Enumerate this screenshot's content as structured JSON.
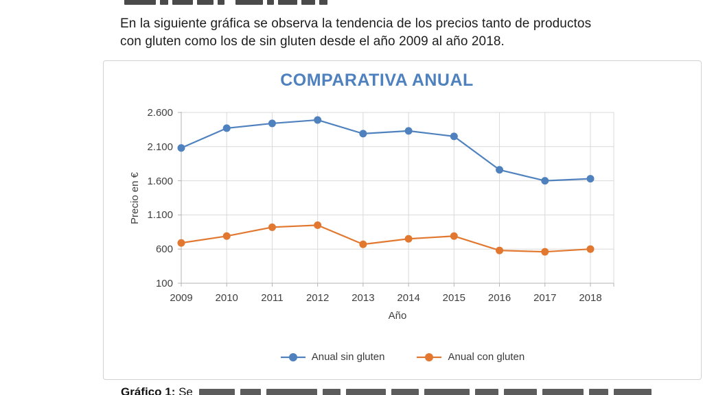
{
  "intro": {
    "lines": [
      "En la siguiente gráfica se observa la tendencia de los precios tanto de productos",
      "con gluten como los de sin gluten desde el año 2009 al año 2018."
    ]
  },
  "chart": {
    "title": "COMPARATIVA ANUAL",
    "x_axis_title": "Año",
    "y_axis_title": "Precio en €"
  },
  "caption": {
    "label": "Gráfico 1:",
    "visible_text": "Se"
  },
  "colors": {
    "title_blue": "#4e81bd",
    "series_sin_gluten": "#4e81bd",
    "series_con_gluten": "#e2782f",
    "gridline": "#d9d9d9",
    "axis": "#b3b3b3"
  },
  "chart_data": {
    "type": "line",
    "title": "COMPARATIVA ANUAL",
    "xlabel": "Año",
    "ylabel": "Precio en €",
    "categories": [
      "2009",
      "2010",
      "2011",
      "2012",
      "2013",
      "2014",
      "2015",
      "2016",
      "2017",
      "2018"
    ],
    "series": [
      {
        "name": "Anual sin gluten",
        "color": "#4e81bd",
        "values": [
          2080,
          2370,
          2440,
          2490,
          2290,
          2330,
          2250,
          1760,
          1600,
          1630
        ]
      },
      {
        "name": "Anual con gluten",
        "color": "#e2782f",
        "values": [
          690,
          790,
          920,
          950,
          670,
          750,
          790,
          580,
          560,
          600
        ]
      }
    ],
    "ylim": [
      100,
      2600
    ],
    "y_ticks": [
      100,
      600,
      1100,
      1600,
      2100,
      2600
    ],
    "y_tick_labels": [
      "100",
      "600",
      "1.100",
      "1.600",
      "2.100",
      "2.600"
    ],
    "grid": true,
    "legend_position": "bottom"
  }
}
